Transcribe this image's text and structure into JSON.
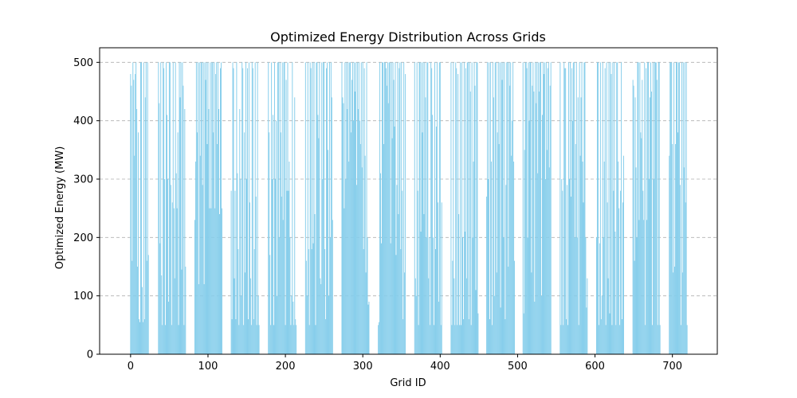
{
  "chart_data": {
    "type": "bar",
    "title": "Optimized Energy Distribution Across Grids",
    "xlabel": "Grid ID",
    "ylabel": "Optimized Energy (MW)",
    "xlim": [
      -40,
      758
    ],
    "ylim": [
      0,
      525
    ],
    "xticks": [
      0,
      100,
      200,
      300,
      400,
      500,
      600,
      700
    ],
    "yticks": [
      0,
      100,
      200,
      300,
      400,
      500
    ],
    "grid": "y-dashed",
    "bar_color": "#87CEEB",
    "x_range": [
      0,
      719
    ],
    "value_range": [
      50,
      500
    ],
    "blocks": [
      {
        "start": 0,
        "end": 23,
        "values": [
          480,
          460,
          160,
          500,
          470,
          340,
          480,
          500,
          420,
          150,
          380,
          60,
          55,
          500,
          500,
          115,
          55,
          500,
          60,
          440,
          500,
          160,
          500,
          170
        ]
      },
      {
        "start": 36,
        "end": 71,
        "values": [
          500,
          430,
          190,
          500,
          135,
          50,
          500,
          490,
          300,
          50,
          500,
          410,
          300,
          90,
          500,
          500,
          290,
          50,
          260,
          500,
          250,
          130,
          500,
          310,
          250,
          380,
          50,
          500,
          440,
          500,
          145,
          500,
          460,
          50,
          420,
          150
        ]
      },
      {
        "start": 83,
        "end": 118,
        "values": [
          230,
          330,
          500,
          380,
          500,
          120,
          500,
          340,
          500,
          500,
          290,
          500,
          120,
          500,
          470,
          500,
          360,
          500,
          420,
          250,
          500,
          250,
          500,
          500,
          380,
          500,
          250,
          480,
          500,
          360,
          500,
          420,
          240,
          490,
          500,
          250
        ]
      },
      {
        "start": 130,
        "end": 166,
        "values": [
          280,
          60,
          500,
          490,
          130,
          280,
          60,
          500,
          310,
          180,
          50,
          420,
          300,
          100,
          500,
          490,
          50,
          380,
          140,
          500,
          300,
          490,
          60,
          500,
          260,
          130,
          50,
          500,
          490,
          60,
          180,
          500,
          270,
          50,
          500,
          100,
          50
        ]
      },
      {
        "start": 178,
        "end": 214,
        "values": [
          500,
          380,
          170,
          50,
          500,
          300,
          410,
          50,
          500,
          300,
          400,
          100,
          500,
          500,
          200,
          500,
          380,
          270,
          500,
          230,
          500,
          500,
          50,
          470,
          280,
          500,
          280,
          330,
          200,
          50,
          100,
          500,
          90,
          50,
          440,
          60,
          50
        ]
      },
      {
        "start": 226,
        "end": 261,
        "values": [
          500,
          160,
          100,
          500,
          180,
          50,
          500,
          490,
          180,
          500,
          190,
          500,
          240,
          50,
          500,
          500,
          410,
          370,
          500,
          130,
          120,
          500,
          300,
          500,
          500,
          180,
          60,
          490,
          500,
          350,
          100,
          500,
          200,
          500,
          440,
          230
        ]
      },
      {
        "start": 273,
        "end": 308,
        "values": [
          500,
          440,
          430,
          250,
          500,
          300,
          500,
          420,
          500,
          330,
          500,
          500,
          380,
          470,
          500,
          400,
          500,
          450,
          500,
          290,
          500,
          420,
          500,
          400,
          360,
          500,
          320,
          500,
          180,
          490,
          340,
          140,
          500,
          200,
          85,
          90
        ]
      },
      {
        "start": 320,
        "end": 355,
        "values": [
          50,
          55,
          500,
          310,
          190,
          500,
          500,
          360,
          500,
          500,
          490,
          460,
          500,
          430,
          500,
          500,
          190,
          500,
          370,
          500,
          470,
          390,
          500,
          170,
          290,
          500,
          240,
          490,
          500,
          180,
          500,
          280,
          60,
          500,
          140,
          480
        ]
      },
      {
        "start": 367,
        "end": 402,
        "values": [
          500,
          130,
          100,
          500,
          280,
          50,
          500,
          500,
          210,
          500,
          380,
          500,
          240,
          500,
          440,
          200,
          500,
          500,
          130,
          200,
          50,
          500,
          490,
          410,
          200,
          50,
          500,
          180,
          390,
          500,
          260,
          90,
          500,
          500,
          50,
          260
        ]
      },
      {
        "start": 414,
        "end": 449,
        "values": [
          500,
          50,
          160,
          500,
          130,
          50,
          500,
          490,
          50,
          480,
          240,
          50,
          500,
          50,
          500,
          200,
          60,
          500,
          210,
          490,
          130,
          500,
          500,
          60,
          500,
          450,
          50,
          500,
          200,
          330,
          500,
          460,
          110,
          500,
          500,
          70
        ]
      },
      {
        "start": 460,
        "end": 496,
        "values": [
          270,
          500,
          300,
          500,
          60,
          500,
          330,
          50,
          500,
          440,
          100,
          500,
          500,
          140,
          380,
          500,
          360,
          500,
          80,
          500,
          470,
          500,
          200,
          500,
          60,
          290,
          500,
          500,
          150,
          500,
          460,
          500,
          340,
          400,
          500,
          330,
          160
        ]
      },
      {
        "start": 507,
        "end": 543,
        "values": [
          500,
          70,
          350,
          500,
          500,
          490,
          200,
          500,
          400,
          500,
          500,
          140,
          460,
          500,
          450,
          90,
          500,
          430,
          500,
          310,
          500,
          450,
          500,
          500,
          100,
          410,
          500,
          480,
          500,
          300,
          500,
          350,
          490,
          500,
          320,
          460,
          500
        ]
      },
      {
        "start": 555,
        "end": 590,
        "values": [
          500,
          50,
          300,
          280,
          50,
          500,
          490,
          490,
          60,
          290,
          50,
          500,
          300,
          500,
          270,
          490,
          400,
          500,
          500,
          200,
          360,
          500,
          200,
          440,
          50,
          500,
          340,
          440,
          500,
          330,
          260,
          500,
          500,
          200,
          80,
          130
        ]
      },
      {
        "start": 602,
        "end": 637,
        "values": [
          200,
          500,
          500,
          50,
          190,
          500,
          60,
          100,
          500,
          200,
          330,
          490,
          50,
          500,
          260,
          130,
          500,
          70,
          500,
          480,
          50,
          500,
          280,
          500,
          210,
          50,
          500,
          500,
          330,
          250,
          50,
          280,
          500,
          60,
          260,
          340
        ]
      },
      {
        "start": 649,
        "end": 684,
        "values": [
          470,
          460,
          160,
          440,
          320,
          200,
          500,
          500,
          230,
          500,
          380,
          370,
          470,
          280,
          230,
          500,
          50,
          490,
          230,
          500,
          500,
          300,
          440,
          500,
          450,
          50,
          500,
          300,
          500,
          500,
          500,
          470,
          50,
          500,
          500,
          50
        ]
      },
      {
        "start": 696,
        "end": 719,
        "values": [
          340,
          500,
          500,
          500,
          360,
          140,
          500,
          150,
          360,
          500,
          500,
          380,
          500,
          500,
          290,
          50,
          500,
          140,
          500,
          320,
          500,
          260,
          500,
          50
        ]
      }
    ]
  }
}
